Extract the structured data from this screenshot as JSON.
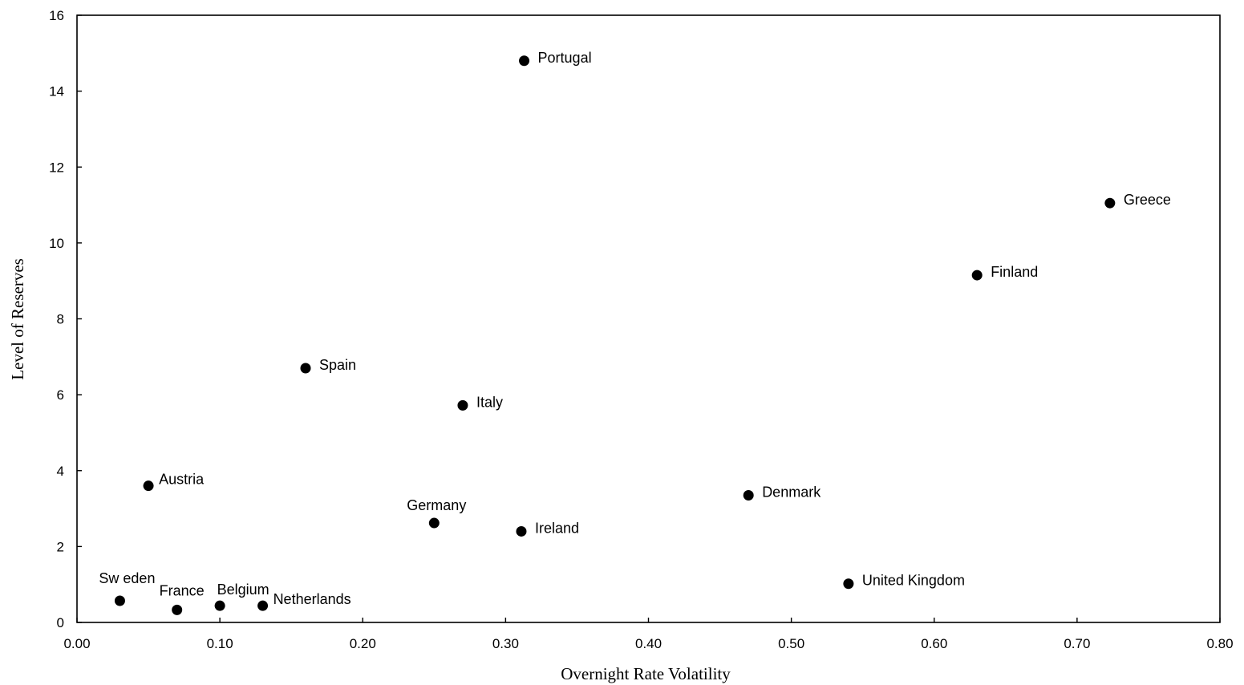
{
  "chart_data": {
    "type": "scatter",
    "title": "",
    "xlabel": "Overnight Rate Volatility",
    "ylabel": "Level of Reserves",
    "xlim": [
      0,
      0.8
    ],
    "ylim": [
      0,
      16
    ],
    "x_ticks": [
      "0.00",
      "0.10",
      "0.20",
      "0.30",
      "0.40",
      "0.50",
      "0.60",
      "0.70",
      "0.80"
    ],
    "y_ticks": [
      "0",
      "2",
      "4",
      "6",
      "8",
      "10",
      "12",
      "14",
      "16"
    ],
    "grid": false,
    "legend": "none",
    "marker_color": "#000000",
    "points": [
      {
        "label": "Portugal",
        "x": 0.313,
        "y": 14.8
      },
      {
        "label": "Greece",
        "x": 0.723,
        "y": 11.05
      },
      {
        "label": "Finland",
        "x": 0.63,
        "y": 9.15
      },
      {
        "label": "Spain",
        "x": 0.16,
        "y": 6.7
      },
      {
        "label": "Italy",
        "x": 0.27,
        "y": 5.72
      },
      {
        "label": "Austria",
        "x": 0.05,
        "y": 3.6
      },
      {
        "label": "Denmark",
        "x": 0.47,
        "y": 3.35
      },
      {
        "label": "Germany",
        "x": 0.25,
        "y": 2.62
      },
      {
        "label": "Ireland",
        "x": 0.311,
        "y": 2.4
      },
      {
        "label": "United Kingdom",
        "x": 0.54,
        "y": 1.02
      },
      {
        "label": "Sw eden",
        "x": 0.03,
        "y": 0.57
      },
      {
        "label": "France",
        "x": 0.07,
        "y": 0.33
      },
      {
        "label": "Belgium",
        "x": 0.1,
        "y": 0.44
      },
      {
        "label": "Netherlands",
        "x": 0.13,
        "y": 0.44
      }
    ]
  }
}
